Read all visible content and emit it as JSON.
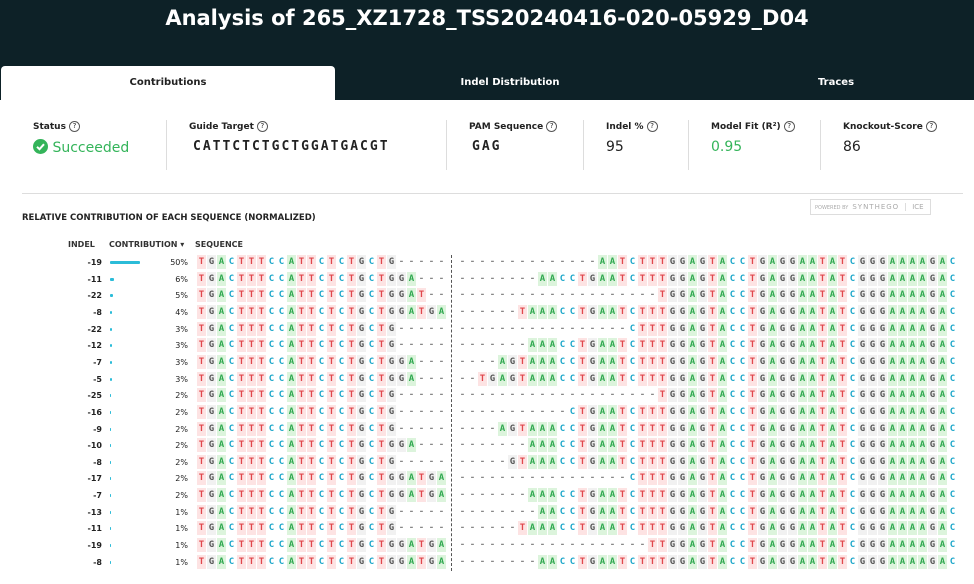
{
  "header": {
    "title": "Analysis of 265_XZ1728_TSS20240416-020-05929_D04"
  },
  "tabs": [
    "Contributions",
    "Indel Distribution",
    "Traces"
  ],
  "stats": {
    "status_label": "Status",
    "status": "Succeeded",
    "guide_label": "Guide Target",
    "guide": "CATTCTCTGCTGGATGACGT",
    "pam_label": "PAM Sequence",
    "pam": "GAG",
    "indel_label": "Indel %",
    "indel": 95,
    "fit_label": "Model Fit (R²)",
    "fit": 0.95,
    "ko_label": "Knockout-Score",
    "ko": 86
  },
  "section": {
    "title": "RELATIVE CONTRIBUTION OF EACH SEQUENCE (NORMALIZED)",
    "badge_left": "POWERED BY",
    "badge_brand": "SYNTHEGO",
    "badge_right": "ICE"
  },
  "table": {
    "columns": [
      "INDEL",
      "CONTRIBUTION",
      "SEQUENCE"
    ],
    "rows": [
      {
        "indel": "-19",
        "contribution": 50,
        "contribution_label": "50%",
        "left": "TGACTTTCCATTCTCTGCTG-----",
        "right": "--------------AATCTTTGGAGTACCTGAGGAATATCGGGAAAAGAC"
      },
      {
        "indel": "-11",
        "contribution": 6,
        "contribution_label": "6%",
        "left": "TGACTTTCCATTCTCTGCTGGA---",
        "right": "--------AACCTGAATCTTTGGAGTACCTGAGGAATATCGGGAAAAGAC"
      },
      {
        "indel": "-22",
        "contribution": 5,
        "contribution_label": "5%",
        "left": "TGACTTTCCATTCTCTGCTGGAT--",
        "right": "--------------------TGGAGTACCTGAGGAATATCGGGAAAAGAC"
      },
      {
        "indel": "-8",
        "contribution": 4,
        "contribution_label": "4%",
        "left": "TGACTTTCCATTCTCTGCTGGATGA",
        "right": "------TAAACCTGAATCTTTGGAGTACCTGAGGAATATCGGGAAAAGAC"
      },
      {
        "indel": "-22",
        "contribution": 3,
        "contribution_label": "3%",
        "left": "TGACTTTCCATTCTCTGCTG-----",
        "right": "-----------------CTTTGGAGTACCTGAGGAATATCGGGAAAAGAC"
      },
      {
        "indel": "-12",
        "contribution": 3,
        "contribution_label": "3%",
        "left": "TGACTTTCCATTCTCTGCTG-----",
        "right": "-------AAACCTGAATCTTTGGAGTACCTGAGGAATATCGGGAAAAGAC"
      },
      {
        "indel": "-7",
        "contribution": 3,
        "contribution_label": "3%",
        "left": "TGACTTTCCATTCTCTGCTGGA---",
        "right": "----AGTAAACCTGAATCTTTGGAGTACCTGAGGAATATCGGGAAAAGAC"
      },
      {
        "indel": "-5",
        "contribution": 3,
        "contribution_label": "3%",
        "left": "TGACTTTCCATTCTCTGCTGGA---",
        "right": "--TGAGTAAACCTGAATCTTTGGAGTACCTGAGGAATATCGGGAAAAGAC"
      },
      {
        "indel": "-25",
        "contribution": 2,
        "contribution_label": "2%",
        "left": "TGACTTTCCATTCTCTGCTG-----",
        "right": "--------------------TGGAGTACCTGAGGAATATCGGGAAAAGAC"
      },
      {
        "indel": "-16",
        "contribution": 2,
        "contribution_label": "2%",
        "left": "TGACTTTCCATTCTCTGCTG-----",
        "right": "-----------CTGAATCTTTGGAGTACCTGAGGAATATCGGGAAAAGAC"
      },
      {
        "indel": "-9",
        "contribution": 2,
        "contribution_label": "2%",
        "left": "TGACTTTCCATTCTCTGCTG-----",
        "right": "----AGTAAACCTGAATCTTTGGAGTACCTGAGGAATATCGGGAAAAGAC"
      },
      {
        "indel": "-10",
        "contribution": 2,
        "contribution_label": "2%",
        "left": "TGACTTTCCATTCTCTGCTGGA---",
        "right": "-------AAACCTGAATCTTTGGAGTACCTGAGGAATATCGGGAAAAGAC"
      },
      {
        "indel": "-8",
        "contribution": 2,
        "contribution_label": "2%",
        "left": "TGACTTTCCATTCTCTGCTG-----",
        "right": "-----GTAAACCTGAATCTTTGGAGTACCTGAGGAATATCGGGAAAAGAC"
      },
      {
        "indel": "-17",
        "contribution": 2,
        "contribution_label": "2%",
        "left": "TGACTTTCCATTCTCTGCTGGATGA",
        "right": "-----------------CTTTGGAGTACCTGAGGAATATCGGGAAAAGAC"
      },
      {
        "indel": "-7",
        "contribution": 2,
        "contribution_label": "2%",
        "left": "TGACTTTCCATTCTCTGCTGGATGA",
        "right": "-------AAACCTGAATCTTTGGAGTACCTGAGGAATATCGGGAAAAGAC"
      },
      {
        "indel": "-13",
        "contribution": 1,
        "contribution_label": "1%",
        "left": "TGACTTTCCATTCTCTGCTG-----",
        "right": "--------AACCTGAATCTTTGGAGTACCTGAGGAATATCGGGAAAAGAC"
      },
      {
        "indel": "-11",
        "contribution": 1,
        "contribution_label": "1%",
        "left": "TGACTTTCCATTCTCTGCTG-----",
        "right": "------TAAACCTGAATCTTTGGAGTACCTGAGGAATATCGGGAAAAGAC"
      },
      {
        "indel": "-19",
        "contribution": 1,
        "contribution_label": "1%",
        "left": "TGACTTTCCATTCTCTGCTGGATGA",
        "right": "-------------------TTGGAGTACCTGAGGAATATCGGGAAAAGAC"
      },
      {
        "indel": "-8",
        "contribution": 1,
        "contribution_label": "1%",
        "left": "TGACTTTCCATTCTCTGCTGGATGA",
        "right": "--------AACCTGAATCTTTGGAGTACCTGAGGAATATCGGGAAAAGAC"
      }
    ]
  }
}
